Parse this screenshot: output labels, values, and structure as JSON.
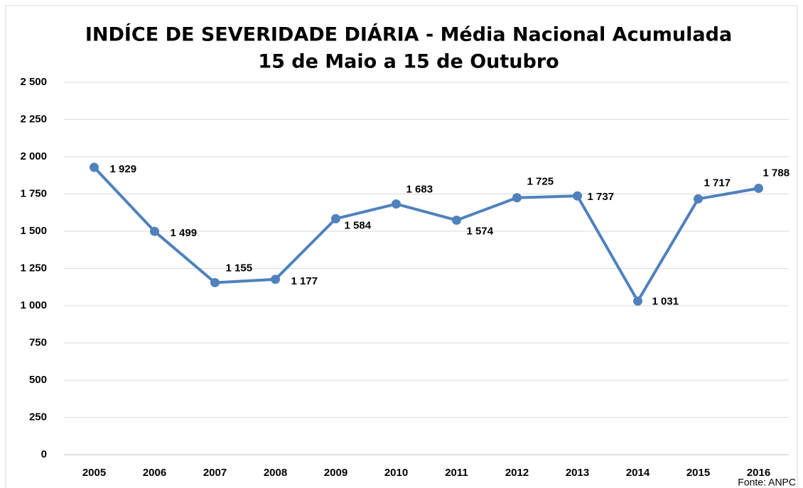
{
  "chart_data": {
    "type": "line",
    "title": [
      "INDÍCE DE SEVERIDADE DIÁRIA - Média Nacional Acumulada",
      "15 de Maio a 15 de Outubro"
    ],
    "source": "Fonte: ANPC",
    "categories": [
      "2005",
      "2006",
      "2007",
      "2008",
      "2009",
      "2010",
      "2011",
      "2012",
      "2013",
      "2014",
      "2015",
      "2016"
    ],
    "series": [
      {
        "color": "#4f81bd",
        "values": [
          1929,
          1499,
          1155,
          1177,
          1584,
          1683,
          1574,
          1725,
          1737,
          1031,
          1717,
          1788
        ],
        "value_labels": [
          "1 929",
          "1 499",
          "1 155",
          "1 177",
          "1 584",
          "1 683",
          "1 574",
          "1 725",
          "1 737",
          "1 031",
          "1 717",
          "1 788"
        ]
      }
    ],
    "ylim": [
      0,
      2500
    ],
    "yticks": [
      0,
      250,
      500,
      750,
      {
        "value": 1000,
        "label": "1 000"
      },
      {
        "value": 1250,
        "label": "1 250"
      },
      {
        "value": 1500,
        "label": "1 500"
      },
      {
        "value": 1750,
        "label": "1 750"
      },
      {
        "value": 2000,
        "label": "2 000"
      },
      {
        "value": 2250,
        "label": "2 250"
      },
      {
        "value": 2500,
        "label": "2 500"
      }
    ],
    "grid": true
  }
}
